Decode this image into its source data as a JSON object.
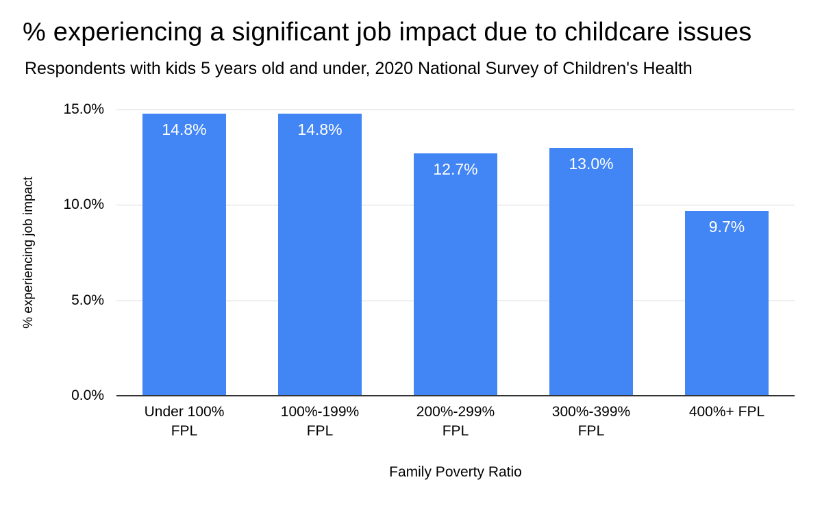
{
  "page": {
    "title": "% experiencing a significant job impact due to childcare issues",
    "subtitle": "Respondents with kids 5 years old and under, 2020 National Survey of Children's Health"
  },
  "chart_data": {
    "type": "bar",
    "title": "% experiencing a significant job impact due to childcare issues",
    "subtitle": "Respondents with kids 5 years old and under, 2020 National Survey of Children's Health",
    "categories": [
      "Under 100%\nFPL",
      "100%-199%\nFPL",
      "200%-299%\nFPL",
      "300%-399%\nFPL",
      "400%+ FPL"
    ],
    "values": [
      14.8,
      14.8,
      12.7,
      13.0,
      9.7
    ],
    "value_labels": [
      "14.8%",
      "14.8%",
      "12.7%",
      "13.0%",
      "9.7%"
    ],
    "xlabel": "Family Poverty Ratio",
    "ylabel": "% experiencing job impact",
    "ylim": [
      0,
      15
    ],
    "ytick_values": [
      0,
      5,
      10,
      15
    ],
    "ytick_labels": [
      "0.0%",
      "5.0%",
      "10.0%",
      "15.0%"
    ],
    "grid": true,
    "legend_position": "none",
    "colors": {
      "bar": "#4285F4",
      "bar_value_label": "#ffffff",
      "gridline": "#d9d9d9",
      "axis_line": "#333333",
      "text": "#000000"
    }
  }
}
